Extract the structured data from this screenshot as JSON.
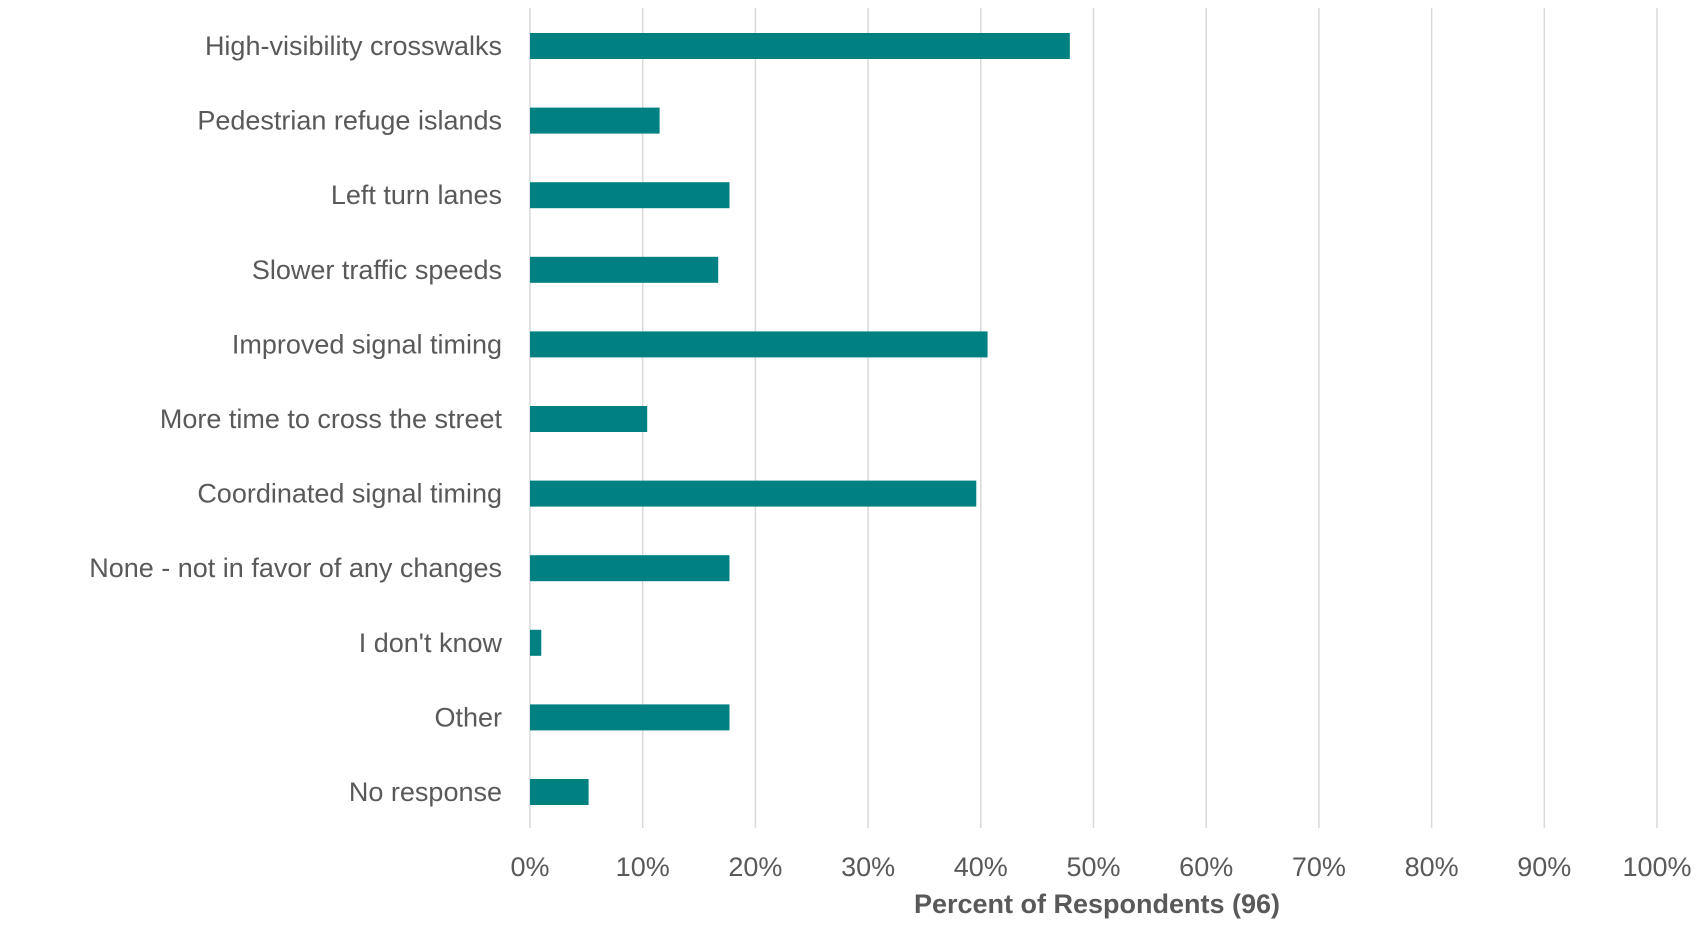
{
  "chart_data": {
    "type": "bar",
    "orientation": "horizontal",
    "categories": [
      "High-visibility crosswalks",
      "Pedestrian refuge islands",
      "Left turn lanes",
      "Slower traffic speeds",
      "Improved signal timing",
      "More time to cross the street",
      "Coordinated signal timing",
      "None - not in favor of any changes",
      "I don't know",
      "Other",
      "No response"
    ],
    "values": [
      47.9,
      11.5,
      17.7,
      16.7,
      40.6,
      10.4,
      39.6,
      17.7,
      1.0,
      17.7,
      5.2
    ],
    "xlabel": "Percent of Respondents (96)",
    "ylabel": "",
    "xlim": [
      0,
      100
    ],
    "xticks": [
      0,
      10,
      20,
      30,
      40,
      50,
      60,
      70,
      80,
      90,
      100
    ],
    "xtick_labels": [
      "0%",
      "10%",
      "20%",
      "30%",
      "40%",
      "50%",
      "60%",
      "70%",
      "80%",
      "90%",
      "100%"
    ],
    "grid": "vertical",
    "legend": "none",
    "bar_color": "#008080"
  }
}
